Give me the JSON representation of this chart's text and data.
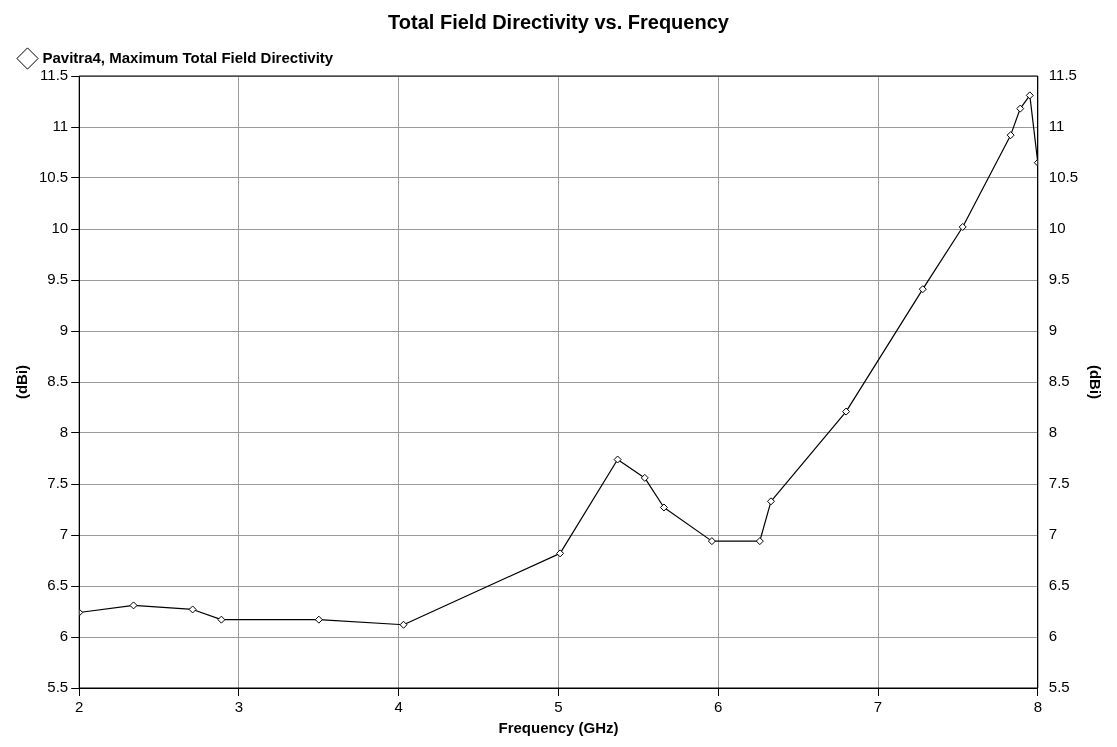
{
  "chart_data": {
    "type": "line",
    "title": "Total Field Directivity vs. Frequency",
    "xlabel": "Frequency (GHz)",
    "ylabel": "(dBi)",
    "y2label": "(dBi)",
    "xlim": [
      2,
      8
    ],
    "xticks": [
      2,
      3,
      4,
      5,
      6,
      7,
      8
    ],
    "ylim": [
      5.5,
      11.5
    ],
    "yticks": [
      5.5,
      6,
      6.5,
      7,
      7.5,
      8,
      8.5,
      9,
      9.5,
      10,
      10.5,
      11,
      11.5
    ],
    "y2lim": [
      5.5,
      11.5
    ],
    "y2ticks": [
      5.5,
      6,
      6.5,
      7,
      7.5,
      8,
      8.5,
      9,
      9.5,
      10,
      10.5,
      11,
      11.5
    ],
    "grid": true,
    "legend": "top left",
    "marker": "diamond",
    "line_style": "solid",
    "series": [
      {
        "name": "Pavitra4, Maximum Total Field Directivity",
        "color": "#000000",
        "x": [
          2,
          2.34,
          2.71,
          2.89,
          3.5,
          4.03,
          5.01,
          5.37,
          5.54,
          5.66,
          5.96,
          6.26,
          6.33,
          6.8,
          7.28,
          7.53,
          7.83,
          7.89,
          7.95,
          8
        ],
        "values": [
          6.24,
          6.31,
          6.27,
          6.17,
          6.17,
          6.12,
          6.82,
          7.74,
          7.56,
          7.27,
          6.94,
          6.94,
          7.33,
          8.21,
          9.41,
          10.02,
          10.92,
          11.18,
          11.31,
          10.65
        ]
      }
    ]
  }
}
